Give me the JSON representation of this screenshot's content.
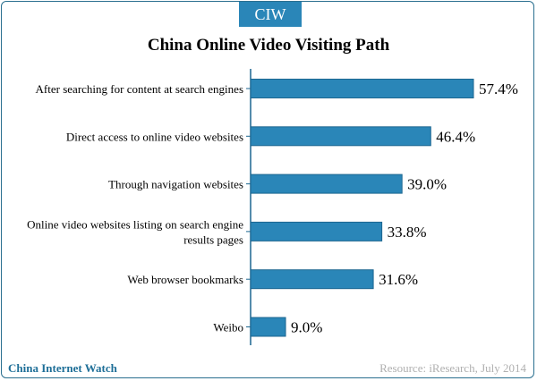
{
  "badge": "CIW",
  "footer": {
    "brand": "China Internet Watch",
    "source": "Resource: iResearch, July 2014"
  },
  "colors": {
    "bar": "#2a86b8",
    "bar_edge": "#1c6690",
    "axis": "#1c6690",
    "brand": "#1f6f98"
  },
  "chart_data": {
    "type": "bar",
    "orientation": "horizontal",
    "title": "China Online Video Visiting Path",
    "categories": [
      "After searching for content at search engines",
      "Direct access to online video websites",
      "Through navigation websites",
      "Online video websites listing on search engine results pages",
      "Web browser bookmarks",
      "Weibo"
    ],
    "values": [
      57.4,
      46.4,
      39.0,
      33.8,
      31.6,
      9.0
    ],
    "value_labels": [
      "57.4%",
      "46.4%",
      "39.0%",
      "33.8%",
      "31.6%",
      "9.0%"
    ],
    "unit": "%",
    "xlim": [
      0,
      57.4
    ],
    "grid": false,
    "legend": "none"
  }
}
